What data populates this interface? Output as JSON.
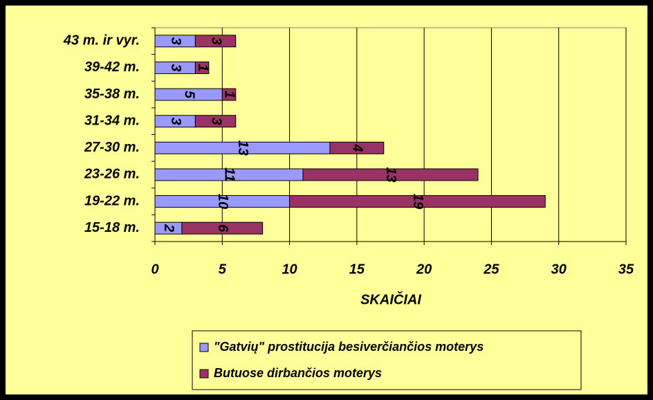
{
  "chart_data": {
    "type": "bar",
    "orientation": "horizontal",
    "stacked": true,
    "xlabel": "SKAIČIAI",
    "categories": [
      "43 m. ir vyr.",
      "39-42 m.",
      "35-38 m.",
      "31-34 m.",
      "27-30 m.",
      "23-26 m.",
      "19-22 m.",
      "15-18 m."
    ],
    "series": [
      {
        "name": "\"Gatvių\" prostitucija besiverčiančios moterys",
        "color": "#9999ff",
        "values": [
          3,
          3,
          5,
          3,
          13,
          11,
          10,
          2
        ]
      },
      {
        "name": "Butuose dirbančios moterys",
        "color": "#993366",
        "values": [
          3,
          1,
          1,
          3,
          4,
          13,
          19,
          6
        ]
      }
    ],
    "xlim": [
      0,
      35
    ],
    "xticks": [
      0,
      5,
      10,
      15,
      20,
      25,
      30,
      35
    ],
    "grid": true,
    "legend": "bottom"
  }
}
